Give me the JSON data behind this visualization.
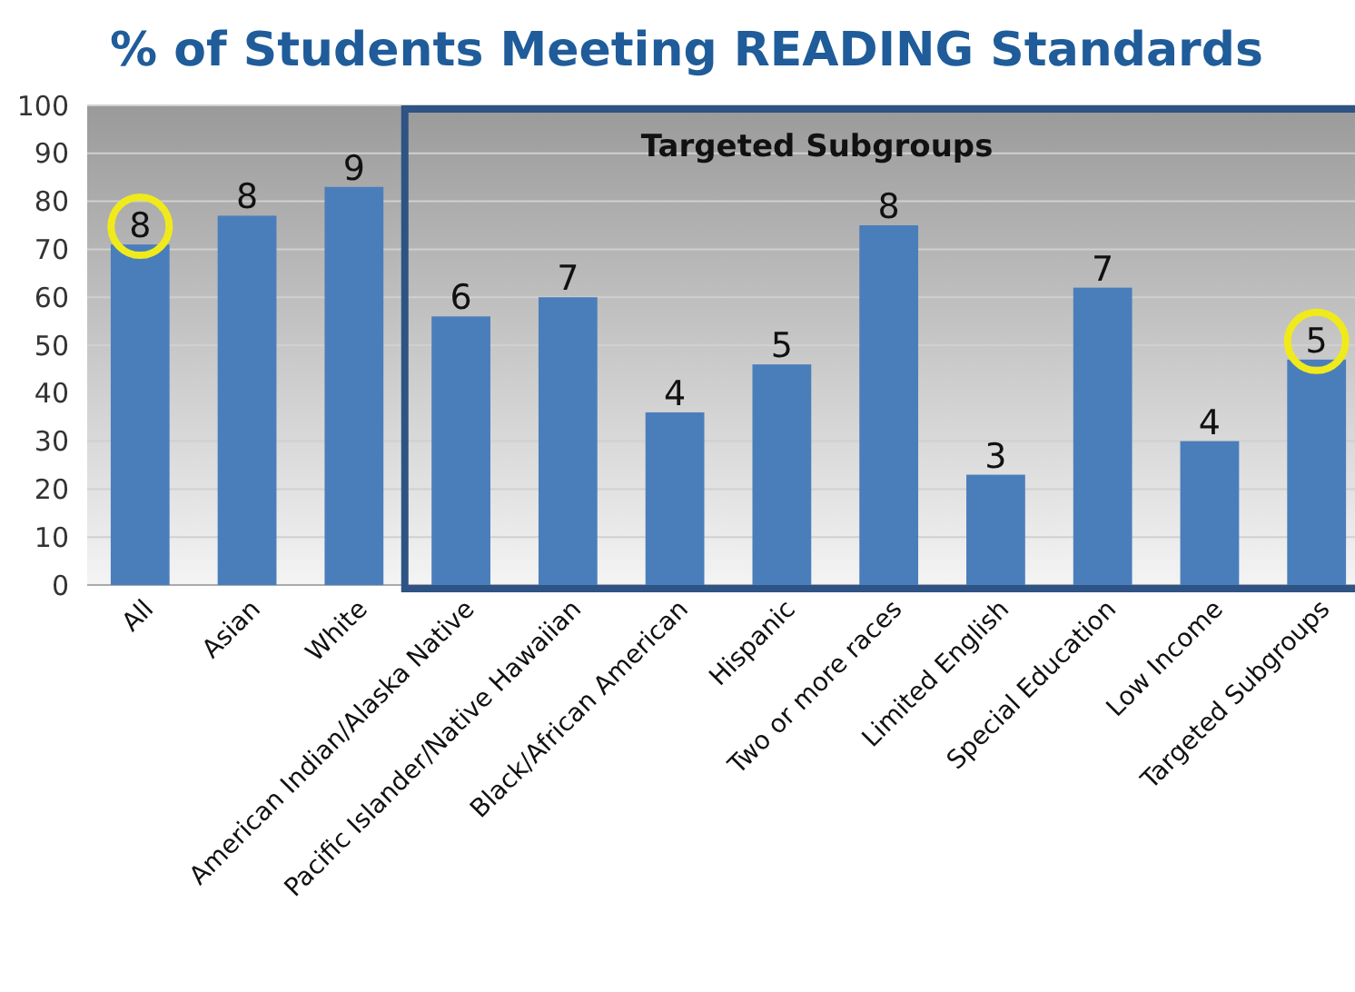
{
  "chart_data": {
    "type": "bar",
    "title": "% of Students Meeting READING Standards",
    "categories": [
      "All",
      "Asian",
      "White",
      "American Indian/Alaska Native",
      "Pacific Islander/Native Hawaiian",
      "Black/African American",
      "Hispanic",
      "Two or more races",
      "Limited English",
      "Special Education",
      "Low Income",
      "Targeted Subgroups"
    ],
    "values": [
      71,
      77,
      83,
      56,
      60,
      36,
      46,
      75,
      23,
      62,
      30,
      47
    ],
    "color": "#4a7ebb",
    "ylim": [
      0,
      100
    ],
    "yticks": [
      0,
      10,
      20,
      30,
      40,
      50,
      60,
      70,
      80,
      90,
      100
    ],
    "grid": "y",
    "annotations": [
      "Targeted Subgroups",
      {
        "text": "8",
        "x": "All",
        "y": 71
      },
      {
        "text": "8",
        "x": "Asian",
        "y": 77
      },
      {
        "text": "9",
        "x": "White",
        "y": 83
      },
      {
        "text": "6",
        "x": "American Indian/Alaska Native",
        "y": 56
      },
      {
        "text": "7",
        "x": "Pacific Islander/Native Hawaiian",
        "y": 60
      },
      {
        "text": "4",
        "x": "Black/African American",
        "y": 36
      },
      {
        "text": "5",
        "x": "Hispanic",
        "y": 46
      },
      {
        "text": "8",
        "x": "Two or more races",
        "y": 75
      },
      {
        "text": "3",
        "x": "Limited English",
        "y": 23
      },
      {
        "text": "7",
        "x": "Special Education",
        "y": 62
      },
      {
        "text": "4",
        "x": "Low Income",
        "y": 30
      },
      {
        "text": "5",
        "x": "Targeted Subgroups",
        "y": 47
      }
    ]
  }
}
